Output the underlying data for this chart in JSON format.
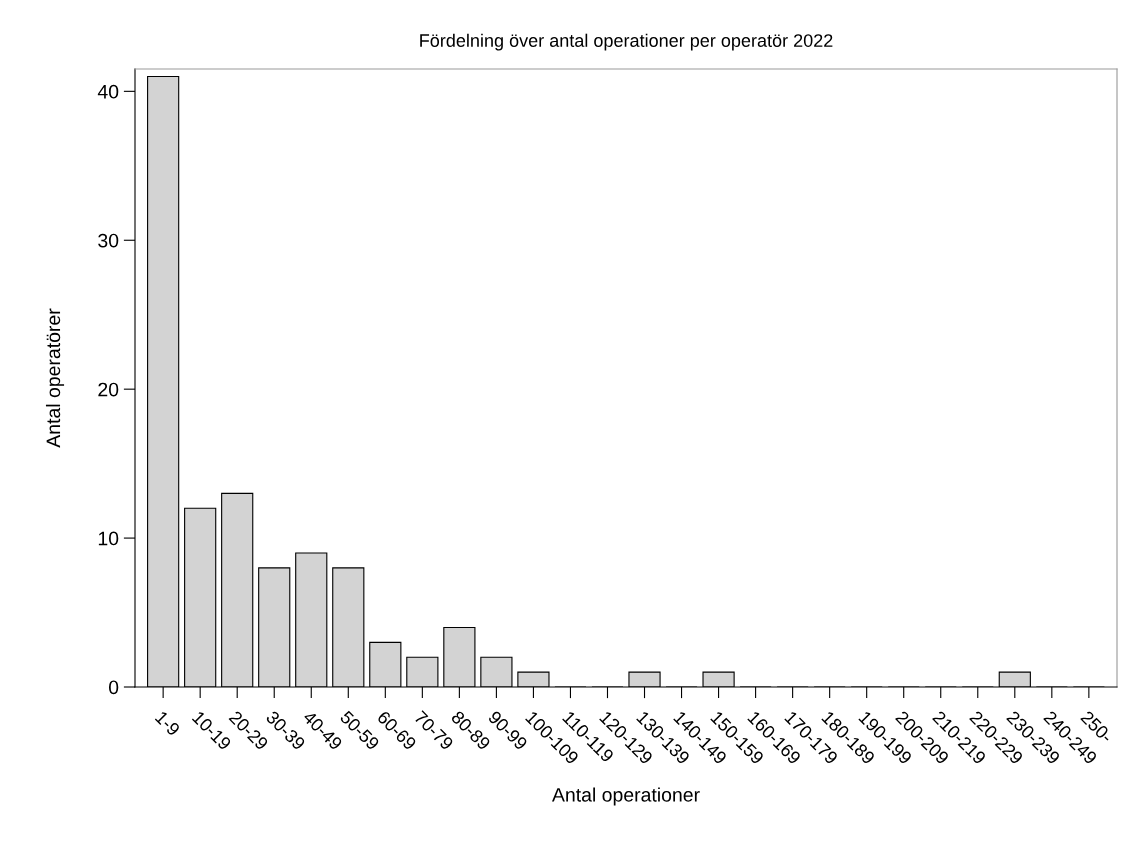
{
  "chart_data": {
    "type": "bar",
    "title": "Fördelning över antal operationer per operatör 2022",
    "xlabel": "Antal operationer",
    "ylabel": "Antal operatörer",
    "categories": [
      "1-9",
      "10-19",
      "20-29",
      "30-39",
      "40-49",
      "50-59",
      "60-69",
      "70-79",
      "80-89",
      "90-99",
      "100-109",
      "110-119",
      "120-129",
      "130-139",
      "140-149",
      "150-159",
      "160-169",
      "170-179",
      "180-189",
      "190-199",
      "200-209",
      "210-219",
      "220-229",
      "230-239",
      "240-249",
      "250-"
    ],
    "values": [
      41,
      12,
      13,
      8,
      9,
      8,
      3,
      2,
      4,
      2,
      1,
      0,
      0,
      1,
      0,
      1,
      0,
      0,
      0,
      0,
      0,
      0,
      0,
      1,
      0,
      0
    ],
    "color": "#d3d3d3",
    "ylim": [
      0,
      41.5
    ],
    "yticks": [
      0,
      10,
      20,
      30,
      40
    ],
    "grid": false,
    "legend": false
  }
}
